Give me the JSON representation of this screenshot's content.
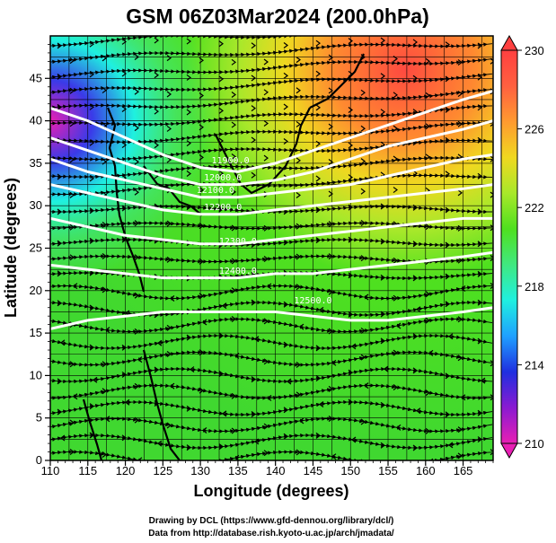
{
  "title": "GSM 06Z03Mar2024 (200.0hPa)",
  "xlabel": "Longitude (degrees)",
  "ylabel": "Latitude  (degrees)",
  "x_axis": {
    "min": 110,
    "max": 169,
    "ticks": [
      110,
      115,
      120,
      125,
      130,
      135,
      140,
      145,
      150,
      155,
      160,
      165
    ]
  },
  "y_axis": {
    "min": 0,
    "max": 50,
    "ticks": [
      0,
      5,
      10,
      15,
      20,
      25,
      30,
      35,
      40,
      45
    ]
  },
  "colorbar": {
    "min": 210,
    "max": 230,
    "tick_labels": [
      "230",
      "226",
      "222",
      "218",
      "214",
      "210"
    ],
    "tick_values": [
      230,
      226,
      222,
      218,
      214,
      210
    ],
    "colors": [
      "#e81fb3",
      "#8a1ad1",
      "#1f2fe0",
      "#1fa0ff",
      "#1ff0e0",
      "#40e880",
      "#4fe01f",
      "#a8e82a",
      "#f0d820",
      "#ff9a30",
      "#ff6040",
      "#ff4040"
    ]
  },
  "contour_labels": [
    "11900.0",
    "12000.0",
    "12100.0",
    "12200.0",
    "12300.0",
    "12400.0",
    "12500.0"
  ],
  "credits": {
    "line1": "Drawing by DCL (https://www.gfd-dennou.org/library/dcl/)",
    "line2": "Data from http://database.rish.kyoto-u.ac.jp/arch/jmadata/"
  },
  "chart_data": {
    "type": "heatmap",
    "title": "GSM 06Z03Mar2024 (200.0hPa)",
    "xlabel": "Longitude (degrees)",
    "ylabel": "Latitude  (degrees)",
    "xlim": [
      110,
      169
    ],
    "ylim": [
      0,
      50
    ],
    "color_scale": {
      "min": 210,
      "max": 230
    },
    "grid": true,
    "contour_lines": [
      {
        "level": 11900,
        "points": [
          [
            110,
            41.5
          ],
          [
            115,
            40
          ],
          [
            120,
            38
          ],
          [
            125,
            36
          ],
          [
            130,
            34.5
          ],
          [
            135,
            34
          ],
          [
            140,
            35
          ],
          [
            145,
            36.5
          ],
          [
            150,
            38
          ],
          [
            155,
            39.5
          ],
          [
            160,
            41
          ],
          [
            165,
            42.5
          ],
          [
            169,
            43.5
          ]
        ]
      },
      {
        "level": 12000,
        "points": [
          [
            110,
            38
          ],
          [
            115,
            36.5
          ],
          [
            120,
            35
          ],
          [
            125,
            33.5
          ],
          [
            130,
            32.5
          ],
          [
            135,
            32.5
          ],
          [
            140,
            33
          ],
          [
            145,
            34
          ],
          [
            150,
            35.5
          ],
          [
            155,
            37
          ],
          [
            160,
            38
          ],
          [
            165,
            39
          ],
          [
            169,
            40
          ]
        ]
      },
      {
        "level": 12100,
        "points": [
          [
            110,
            35.5
          ],
          [
            115,
            34
          ],
          [
            120,
            33
          ],
          [
            125,
            32
          ],
          [
            130,
            31
          ],
          [
            135,
            31
          ],
          [
            140,
            31.5
          ],
          [
            145,
            32
          ],
          [
            150,
            32.5
          ],
          [
            155,
            33.5
          ],
          [
            160,
            34.5
          ],
          [
            165,
            35.5
          ],
          [
            169,
            36
          ]
        ]
      },
      {
        "level": 12200,
        "points": [
          [
            110,
            32.5
          ],
          [
            115,
            31.5
          ],
          [
            120,
            30.5
          ],
          [
            125,
            29.5
          ],
          [
            130,
            29
          ],
          [
            135,
            29
          ],
          [
            140,
            29.5
          ],
          [
            145,
            30
          ],
          [
            150,
            30.5
          ],
          [
            155,
            31
          ],
          [
            160,
            31.5
          ],
          [
            165,
            32
          ],
          [
            169,
            32.5
          ]
        ]
      },
      {
        "level": 12300,
        "points": [
          [
            110,
            28.5
          ],
          [
            115,
            27.5
          ],
          [
            120,
            26.5
          ],
          [
            125,
            26
          ],
          [
            130,
            25.5
          ],
          [
            135,
            25.5
          ],
          [
            140,
            26
          ],
          [
            145,
            26.5
          ],
          [
            150,
            27
          ],
          [
            155,
            27.5
          ],
          [
            160,
            28
          ],
          [
            165,
            28.5
          ],
          [
            169,
            28.5
          ]
        ]
      },
      {
        "level": 12400,
        "points": [
          [
            110,
            23
          ],
          [
            115,
            22.5
          ],
          [
            120,
            22
          ],
          [
            125,
            21.5
          ],
          [
            130,
            21.5
          ],
          [
            135,
            21.5
          ],
          [
            140,
            22
          ],
          [
            145,
            22
          ],
          [
            150,
            22.5
          ],
          [
            155,
            23
          ],
          [
            160,
            23.5
          ],
          [
            165,
            24
          ],
          [
            169,
            24.5
          ]
        ]
      },
      {
        "level": 12500,
        "points": [
          [
            110,
            15.5
          ],
          [
            115,
            16.5
          ],
          [
            120,
            17
          ],
          [
            125,
            17.5
          ],
          [
            130,
            17.5
          ],
          [
            135,
            17.5
          ],
          [
            140,
            17.5
          ],
          [
            145,
            17
          ],
          [
            150,
            16.5
          ],
          [
            155,
            16.5
          ],
          [
            160,
            17
          ],
          [
            165,
            17.5
          ],
          [
            169,
            18
          ]
        ]
      }
    ]
  }
}
